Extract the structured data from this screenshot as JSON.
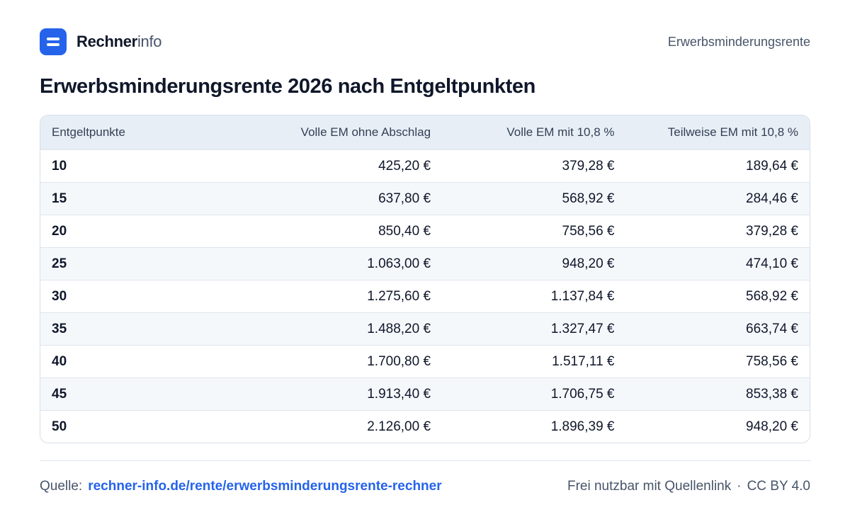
{
  "header": {
    "brand_strong": "Rechner",
    "brand_light": "info",
    "logo_icon": "equals-icon",
    "page_label": "Erwerbsminderungsrente"
  },
  "colors": {
    "accent": "#2563eb",
    "header_bg": "#e8eef6",
    "row_alt": "#f5f8fb"
  },
  "chart_data": {
    "type": "table",
    "title": "Erwerbsminderungsrente 2026 nach Entgeltpunkten",
    "columns": [
      "Entgeltpunkte",
      "Volle EM ohne Abschlag",
      "Volle EM mit 10,8 %",
      "Teilweise EM mit 10,8 %"
    ],
    "rows": [
      [
        "10",
        "425,20 €",
        "379,28 €",
        "189,64 €"
      ],
      [
        "15",
        "637,80 €",
        "568,92 €",
        "284,46 €"
      ],
      [
        "20",
        "850,40 €",
        "758,56 €",
        "379,28 €"
      ],
      [
        "25",
        "1.063,00 €",
        "948,20 €",
        "474,10 €"
      ],
      [
        "30",
        "1.275,60 €",
        "1.137,84 €",
        "568,92 €"
      ],
      [
        "35",
        "1.488,20 €",
        "1.327,47 €",
        "663,74 €"
      ],
      [
        "40",
        "1.700,80 €",
        "1.517,11 €",
        "758,56 €"
      ],
      [
        "45",
        "1.913,40 €",
        "1.706,75 €",
        "853,38 €"
      ],
      [
        "50",
        "2.126,00 €",
        "1.896,39 €",
        "948,20 €"
      ]
    ]
  },
  "footer": {
    "source_label": "Quelle:",
    "source_link": "rechner-info.de/rente/erwerbsminderungsrente-rechner",
    "license_text": "Frei nutzbar mit Quellenlink",
    "separator": "·",
    "license": "CC BY 4.0"
  }
}
